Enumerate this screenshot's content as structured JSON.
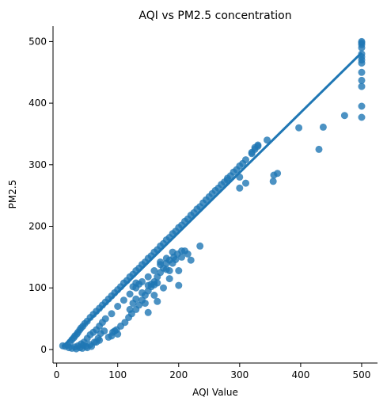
{
  "colors": {
    "accent": "#1f77b4",
    "axis": "#000000"
  },
  "chart_data": {
    "type": "scatter",
    "title": "AQI vs PM2.5 concentration",
    "xlabel": "AQI Value",
    "ylabel": "PM2.5",
    "xlim": [
      -6,
      526
    ],
    "ylim": [
      -22,
      525
    ],
    "xticks": [
      0,
      100,
      200,
      300,
      400,
      500
    ],
    "yticks": [
      0,
      100,
      200,
      300,
      400,
      500
    ],
    "grid": false,
    "legend": "none",
    "trend_line": {
      "x": [
        10,
        500
      ],
      "y": [
        5,
        482
      ]
    },
    "series": [
      {
        "points": [
          [
            10,
            6
          ],
          [
            14,
            5
          ],
          [
            18,
            7
          ],
          [
            22,
            12
          ],
          [
            25,
            16
          ],
          [
            28,
            19
          ],
          [
            30,
            22
          ],
          [
            33,
            25
          ],
          [
            35,
            28
          ],
          [
            38,
            32
          ],
          [
            40,
            35
          ],
          [
            43,
            38
          ],
          [
            46,
            42
          ],
          [
            50,
            46
          ],
          [
            55,
            52
          ],
          [
            60,
            57
          ],
          [
            65,
            62
          ],
          [
            70,
            67
          ],
          [
            75,
            72
          ],
          [
            80,
            77
          ],
          [
            85,
            82
          ],
          [
            90,
            87
          ],
          [
            95,
            92
          ],
          [
            100,
            97
          ],
          [
            105,
            102
          ],
          [
            110,
            108
          ],
          [
            115,
            112
          ],
          [
            120,
            118
          ],
          [
            125,
            122
          ],
          [
            130,
            128
          ],
          [
            135,
            132
          ],
          [
            140,
            138
          ],
          [
            145,
            142
          ],
          [
            150,
            148
          ],
          [
            155,
            152
          ],
          [
            160,
            158
          ],
          [
            165,
            162
          ],
          [
            170,
            168
          ],
          [
            175,
            172
          ],
          [
            180,
            178
          ],
          [
            185,
            182
          ],
          [
            190,
            188
          ],
          [
            195,
            192
          ],
          [
            200,
            198
          ],
          [
            205,
            202
          ],
          [
            210,
            208
          ],
          [
            215,
            212
          ],
          [
            220,
            218
          ],
          [
            225,
            222
          ],
          [
            230,
            228
          ],
          [
            235,
            232
          ],
          [
            240,
            238
          ],
          [
            245,
            243
          ],
          [
            250,
            248
          ],
          [
            255,
            253
          ],
          [
            260,
            258
          ],
          [
            265,
            262
          ],
          [
            270,
            268
          ],
          [
            275,
            272
          ],
          [
            280,
            278
          ],
          [
            285,
            282
          ],
          [
            290,
            288
          ],
          [
            295,
            292
          ],
          [
            300,
            298
          ],
          [
            305,
            302
          ],
          [
            310,
            308
          ],
          [
            320,
            318
          ],
          [
            325,
            325
          ],
          [
            330,
            330
          ],
          [
            345,
            340
          ],
          [
            20,
            3
          ],
          [
            25,
            2
          ],
          [
            30,
            4
          ],
          [
            35,
            6
          ],
          [
            40,
            9
          ],
          [
            45,
            12
          ],
          [
            50,
            18
          ],
          [
            55,
            24
          ],
          [
            60,
            28
          ],
          [
            65,
            32
          ],
          [
            70,
            38
          ],
          [
            75,
            44
          ],
          [
            80,
            50
          ],
          [
            90,
            58
          ],
          [
            100,
            70
          ],
          [
            110,
            80
          ],
          [
            120,
            90
          ],
          [
            130,
            100
          ],
          [
            140,
            110
          ],
          [
            150,
            118
          ],
          [
            160,
            128
          ],
          [
            170,
            138
          ],
          [
            180,
            148
          ],
          [
            190,
            158
          ],
          [
            32,
            1
          ],
          [
            42,
            2
          ],
          [
            48,
            5
          ],
          [
            55,
            8
          ],
          [
            62,
            12
          ],
          [
            68,
            18
          ],
          [
            38,
            3
          ],
          [
            44,
            7
          ],
          [
            72,
            26
          ],
          [
            78,
            30
          ],
          [
            85,
            20
          ],
          [
            92,
            28
          ],
          [
            98,
            32
          ],
          [
            105,
            38
          ],
          [
            112,
            44
          ],
          [
            118,
            52
          ],
          [
            123,
            58
          ],
          [
            130,
            65
          ],
          [
            135,
            72
          ],
          [
            140,
            80
          ],
          [
            145,
            88
          ],
          [
            150,
            95
          ],
          [
            155,
            102
          ],
          [
            160,
            110
          ],
          [
            165,
            118
          ],
          [
            170,
            125
          ],
          [
            175,
            132
          ],
          [
            180,
            140
          ],
          [
            185,
            145
          ],
          [
            192,
            150
          ],
          [
            198,
            155
          ],
          [
            205,
            160
          ],
          [
            125,
            102
          ],
          [
            130,
            108
          ],
          [
            135,
            106
          ],
          [
            140,
            92
          ],
          [
            150,
            104
          ],
          [
            155,
            106
          ],
          [
            160,
            105
          ],
          [
            165,
            108
          ],
          [
            170,
            142
          ],
          [
            180,
            130
          ],
          [
            185,
            128
          ],
          [
            190,
            140
          ],
          [
            195,
            146
          ],
          [
            200,
            104
          ],
          [
            210,
            160
          ],
          [
            215,
            155
          ],
          [
            205,
            150
          ],
          [
            220,
            145
          ],
          [
            235,
            168
          ],
          [
            200,
            128
          ],
          [
            185,
            115
          ],
          [
            175,
            100
          ],
          [
            145,
            75
          ],
          [
            120,
            65
          ],
          [
            125,
            75
          ],
          [
            130,
            82
          ],
          [
            150,
            60
          ],
          [
            160,
            88
          ],
          [
            165,
            78
          ],
          [
            90,
            22
          ],
          [
            95,
            30
          ],
          [
            100,
            25
          ],
          [
            65,
            12
          ],
          [
            70,
            15
          ],
          [
            50,
            3
          ],
          [
            57,
            5
          ],
          [
            300,
            262
          ],
          [
            310,
            270
          ],
          [
            300,
            280
          ],
          [
            280,
            275
          ],
          [
            320,
            320
          ],
          [
            325,
            328
          ],
          [
            330,
            332
          ],
          [
            355,
            273
          ],
          [
            356,
            283
          ],
          [
            362,
            286
          ],
          [
            397,
            360
          ],
          [
            430,
            325
          ],
          [
            437,
            361
          ],
          [
            472,
            380
          ],
          [
            500,
            500
          ],
          [
            500,
            498
          ],
          [
            500,
            495
          ],
          [
            500,
            490
          ],
          [
            500,
            480
          ],
          [
            500,
            475
          ],
          [
            500,
            470
          ],
          [
            500,
            465
          ],
          [
            500,
            450
          ],
          [
            500,
            437
          ],
          [
            500,
            427
          ],
          [
            500,
            395
          ],
          [
            500,
            377
          ]
        ]
      }
    ]
  }
}
